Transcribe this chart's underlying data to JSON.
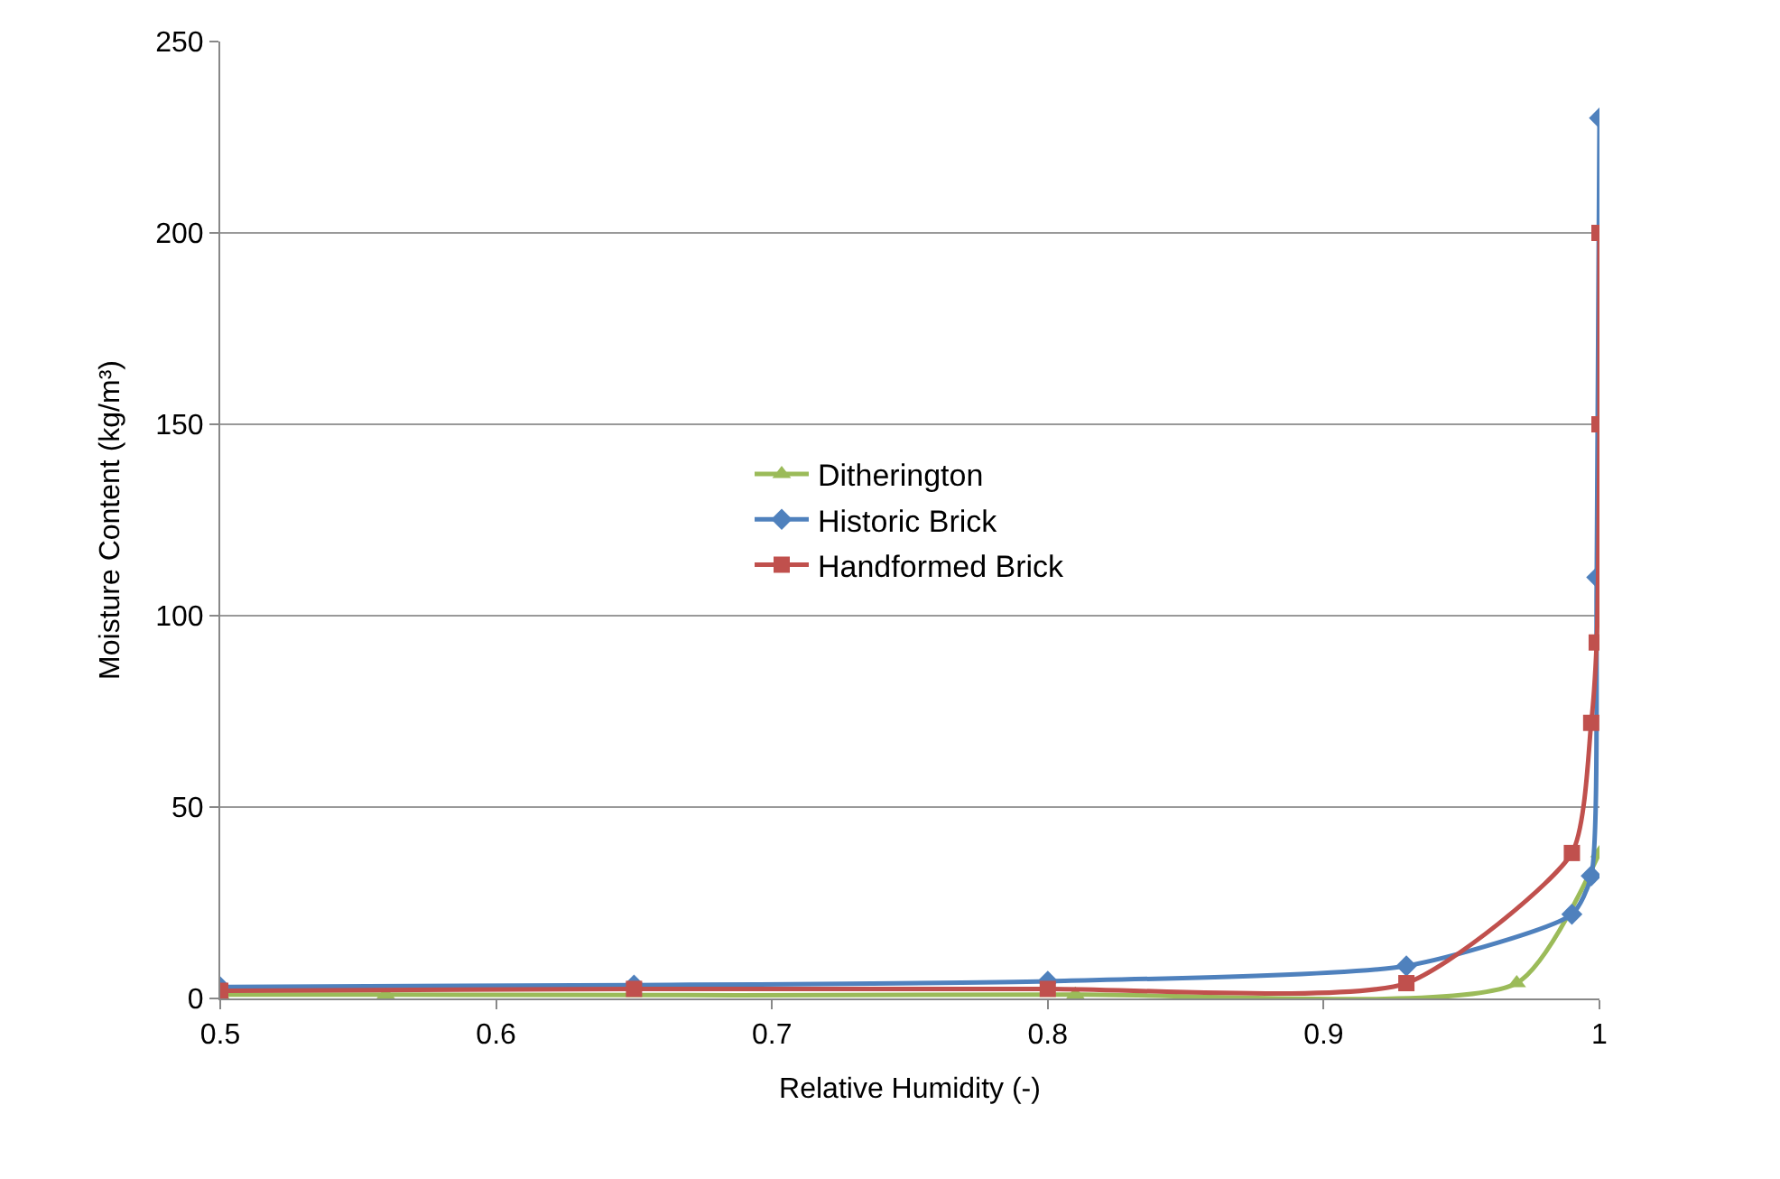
{
  "chart_data": {
    "type": "line",
    "xlabel": "Relative Humidity (-)",
    "ylabel": "Moisture Content (kg/m³)",
    "xlim": [
      0.5,
      1
    ],
    "xticks": [
      0.5,
      0.6,
      0.7,
      0.8,
      0.9,
      1
    ],
    "ylim": [
      0,
      250
    ],
    "yticks": [
      0,
      50,
      100,
      150,
      200,
      250
    ],
    "grid": "y",
    "legend": "center",
    "line_style": "solid",
    "series": [
      {
        "name": "Ditherington",
        "color": "#9bbb59",
        "marker": "triangle",
        "x": [
          0.5,
          0.56,
          0.81,
          0.97,
          1.0
        ],
        "values": [
          1,
          1,
          1,
          4,
          38
        ]
      },
      {
        "name": "Historic Brick",
        "color": "#4f81bd",
        "marker": "diamond",
        "x": [
          0.5,
          0.65,
          0.8,
          0.93,
          0.99,
          0.997,
          0.999,
          1.0
        ],
        "values": [
          3,
          3.5,
          4.5,
          8.5,
          22,
          32,
          110,
          230
        ]
      },
      {
        "name": "Handformed Brick",
        "color": "#c0504d",
        "marker": "square",
        "x": [
          0.5,
          0.65,
          0.8,
          0.93,
          0.99,
          0.997,
          0.999,
          1.0,
          1.0
        ],
        "values": [
          2,
          2.5,
          2.5,
          4,
          38,
          72,
          93,
          150,
          200
        ]
      }
    ]
  }
}
